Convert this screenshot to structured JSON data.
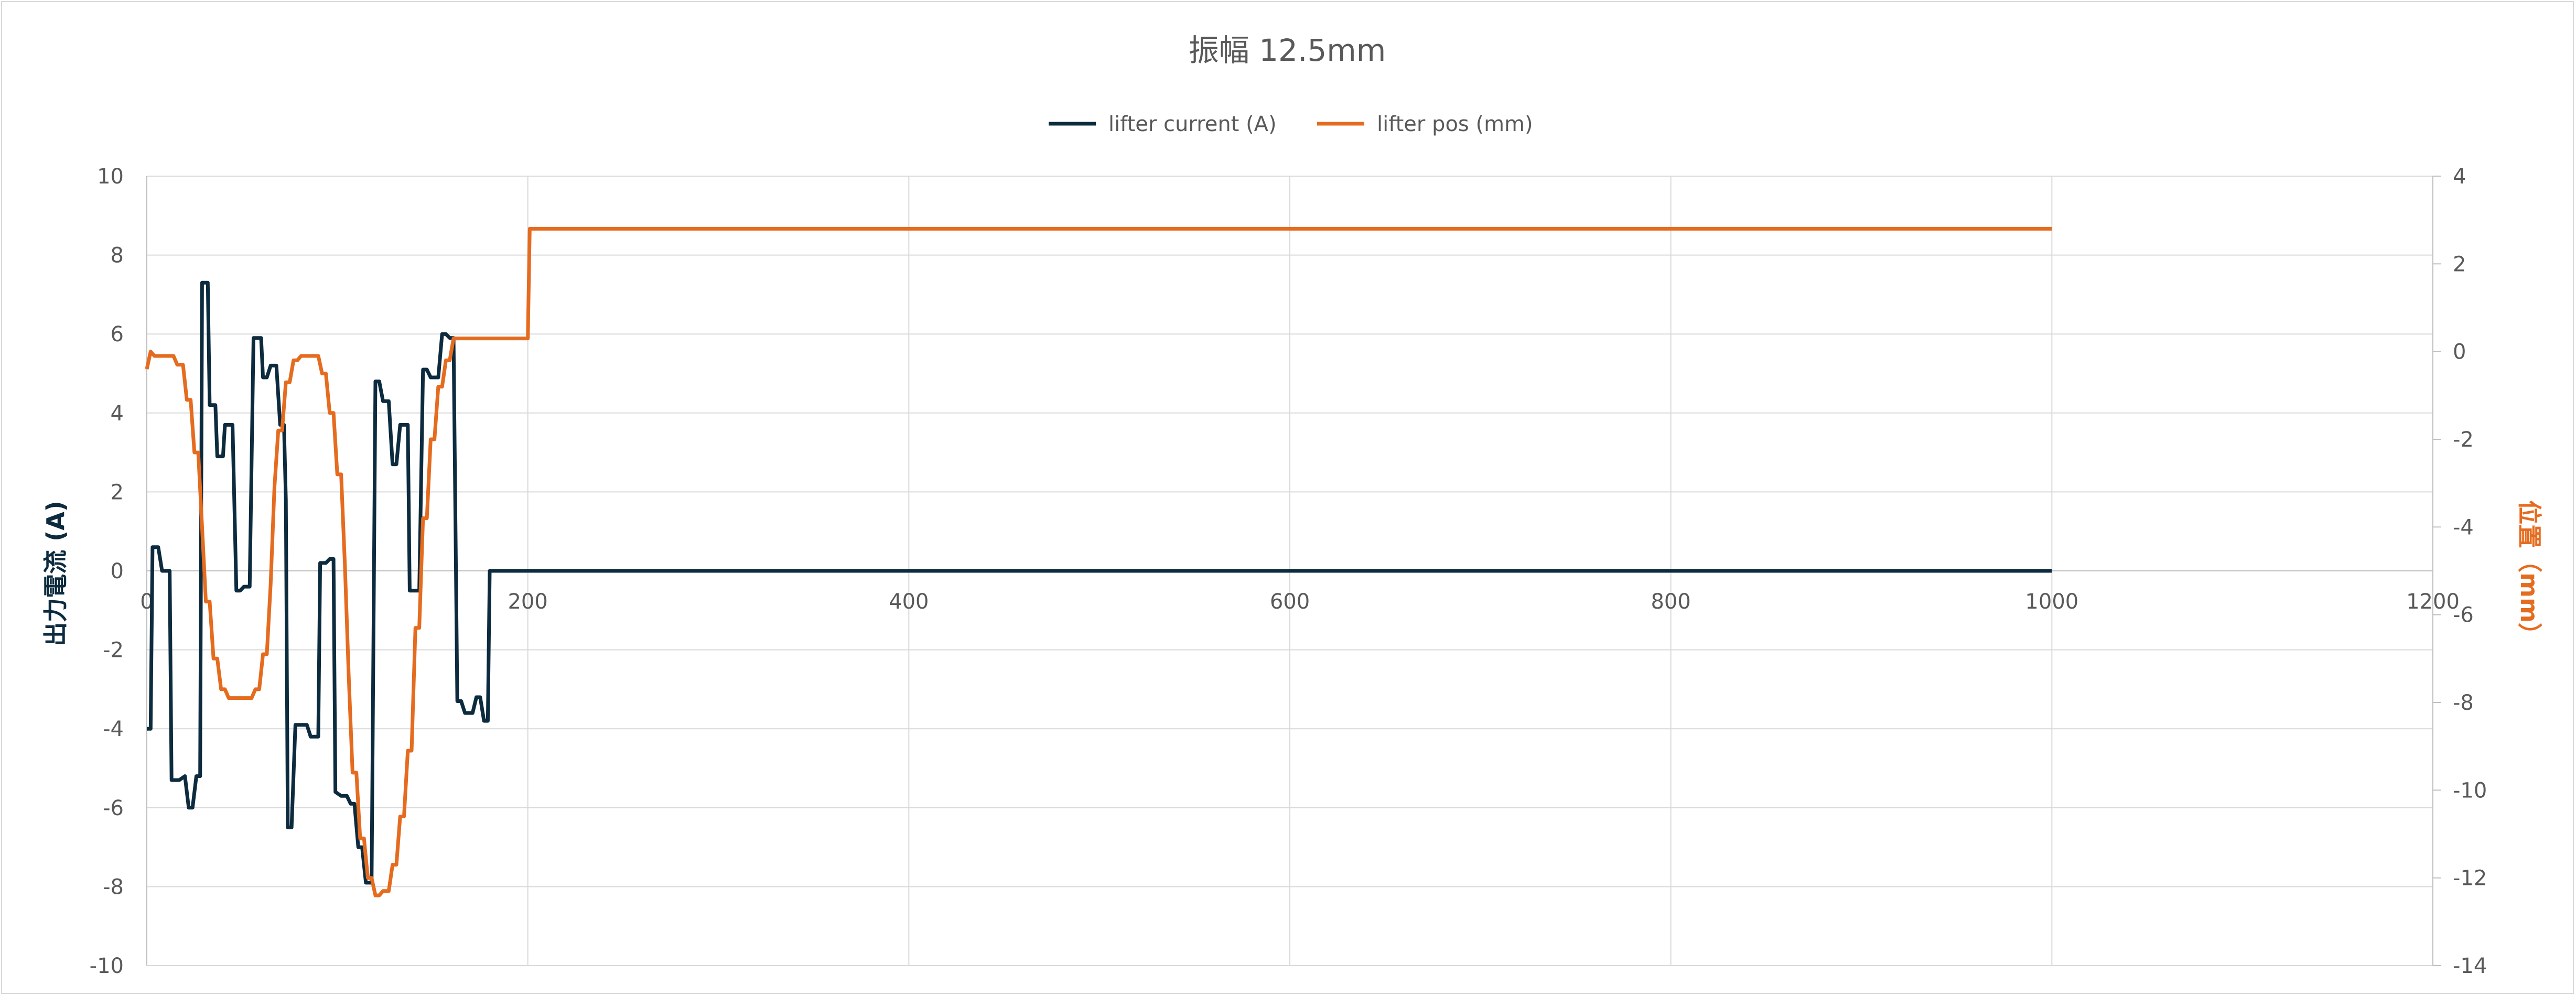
{
  "chart_data": {
    "type": "line",
    "title": "振幅 12.5mm",
    "legend": {
      "placement": "top-center",
      "entries": [
        "lifter current (A)",
        "lifter pos (mm)"
      ]
    },
    "grid": true,
    "x_axis": {
      "range": [
        0,
        1200
      ],
      "ticks": [
        0,
        200,
        400,
        600,
        800,
        1000,
        1200
      ],
      "tick_labels": [
        "0",
        "200",
        "400",
        "600",
        "800",
        "1000",
        "1200"
      ]
    },
    "y_left": {
      "label": "出力電流 (A)",
      "range": [
        -10,
        10
      ],
      "ticks": [
        -10,
        -8,
        -6,
        -4,
        -2,
        0,
        2,
        4,
        6,
        8,
        10
      ],
      "tick_labels": [
        "-10",
        "-8",
        "-6",
        "-4",
        "-2",
        "0",
        "2",
        "4",
        "6",
        "8",
        "10"
      ]
    },
    "y_right": {
      "label": "位置（mm）",
      "range": [
        -14,
        4
      ],
      "ticks": [
        -14,
        -12,
        -10,
        -8,
        -6,
        -4,
        -2,
        0,
        2,
        4
      ],
      "tick_labels": [
        "-14",
        "-12",
        "-10",
        "-8",
        "-6",
        "-4",
        "-2",
        "0",
        "2",
        "4"
      ]
    },
    "series": [
      {
        "name": "lifter current (A)",
        "axis": "left",
        "color": "#0d2b3e",
        "points": [
          [
            0,
            -4.0
          ],
          [
            2,
            -4.0
          ],
          [
            3,
            0.6
          ],
          [
            6,
            0.6
          ],
          [
            8,
            0.0
          ],
          [
            12,
            0.0
          ],
          [
            13,
            -5.3
          ],
          [
            17,
            -5.3
          ],
          [
            20,
            -5.2
          ],
          [
            22,
            -6.0
          ],
          [
            24,
            -6.0
          ],
          [
            26,
            -5.2
          ],
          [
            28,
            -5.2
          ],
          [
            29,
            7.3
          ],
          [
            32,
            7.3
          ],
          [
            33,
            4.2
          ],
          [
            36,
            4.2
          ],
          [
            37,
            2.9
          ],
          [
            40,
            2.9
          ],
          [
            41,
            3.7
          ],
          [
            45,
            3.7
          ],
          [
            47,
            -0.5
          ],
          [
            49,
            -0.5
          ],
          [
            51,
            -0.4
          ],
          [
            54,
            -0.4
          ],
          [
            56,
            5.9
          ],
          [
            60,
            5.9
          ],
          [
            61,
            4.9
          ],
          [
            63,
            4.9
          ],
          [
            65,
            5.2
          ],
          [
            68,
            5.2
          ],
          [
            70,
            3.7
          ],
          [
            72,
            3.7
          ],
          [
            73,
            1.8
          ],
          [
            74,
            -6.5
          ],
          [
            76,
            -6.5
          ],
          [
            78,
            -3.9
          ],
          [
            84,
            -3.9
          ],
          [
            86,
            -4.2
          ],
          [
            90,
            -4.2
          ],
          [
            91,
            0.2
          ],
          [
            94,
            0.2
          ],
          [
            96,
            0.3
          ],
          [
            98,
            0.3
          ],
          [
            99,
            -5.6
          ],
          [
            102,
            -5.7
          ],
          [
            105,
            -5.7
          ],
          [
            107,
            -5.9
          ],
          [
            109,
            -5.9
          ],
          [
            111,
            -7.0
          ],
          [
            113,
            -7.0
          ],
          [
            115,
            -7.9
          ],
          [
            118,
            -7.9
          ],
          [
            120,
            4.8
          ],
          [
            122,
            4.8
          ],
          [
            124,
            4.3
          ],
          [
            127,
            4.3
          ],
          [
            129,
            2.7
          ],
          [
            131,
            2.7
          ],
          [
            133,
            3.7
          ],
          [
            137,
            3.7
          ],
          [
            138,
            -0.5
          ],
          [
            143,
            -0.5
          ],
          [
            145,
            5.1
          ],
          [
            147,
            5.1
          ],
          [
            149,
            4.9
          ],
          [
            153,
            4.9
          ],
          [
            155,
            6.0
          ],
          [
            157,
            6.0
          ],
          [
            159,
            5.9
          ],
          [
            161,
            5.9
          ],
          [
            163,
            -3.3
          ],
          [
            165,
            -3.3
          ],
          [
            167,
            -3.6
          ],
          [
            171,
            -3.6
          ],
          [
            173,
            -3.2
          ],
          [
            175,
            -3.2
          ],
          [
            177,
            -3.8
          ],
          [
            179,
            -3.8
          ],
          [
            180,
            0.0
          ],
          [
            1000,
            0.0
          ]
        ]
      },
      {
        "name": "lifter pos (mm)",
        "axis": "right",
        "color": "#e56b1f",
        "points": [
          [
            0,
            -0.4
          ],
          [
            2,
            0.0
          ],
          [
            4,
            -0.1
          ],
          [
            14,
            -0.1
          ],
          [
            16,
            -0.3
          ],
          [
            19,
            -0.3
          ],
          [
            21,
            -1.1
          ],
          [
            23,
            -1.1
          ],
          [
            25,
            -2.3
          ],
          [
            27,
            -2.3
          ],
          [
            29,
            -4.0
          ],
          [
            31,
            -5.7
          ],
          [
            33,
            -5.7
          ],
          [
            35,
            -7.0
          ],
          [
            37,
            -7.0
          ],
          [
            39,
            -7.7
          ],
          [
            41,
            -7.7
          ],
          [
            43,
            -7.9
          ],
          [
            47,
            -7.9
          ],
          [
            49,
            -7.9
          ],
          [
            51,
            -7.9
          ],
          [
            53,
            -7.9
          ],
          [
            55,
            -7.9
          ],
          [
            57,
            -7.7
          ],
          [
            59,
            -7.7
          ],
          [
            61,
            -6.9
          ],
          [
            63,
            -6.9
          ],
          [
            65,
            -5.3
          ],
          [
            67,
            -3.1
          ],
          [
            69,
            -1.8
          ],
          [
            71,
            -1.8
          ],
          [
            73,
            -0.7
          ],
          [
            75,
            -0.7
          ],
          [
            77,
            -0.2
          ],
          [
            79,
            -0.2
          ],
          [
            81,
            -0.1
          ],
          [
            85,
            -0.1
          ],
          [
            90,
            -0.1
          ],
          [
            92,
            -0.5
          ],
          [
            94,
            -0.5
          ],
          [
            96,
            -1.4
          ],
          [
            98,
            -1.4
          ],
          [
            100,
            -2.8
          ],
          [
            102,
            -2.8
          ],
          [
            104,
            -4.9
          ],
          [
            106,
            -7.4
          ],
          [
            108,
            -9.6
          ],
          [
            110,
            -9.6
          ],
          [
            112,
            -11.1
          ],
          [
            114,
            -11.1
          ],
          [
            116,
            -12.0
          ],
          [
            118,
            -12.0
          ],
          [
            120,
            -12.4
          ],
          [
            122,
            -12.4
          ],
          [
            124,
            -12.3
          ],
          [
            127,
            -12.3
          ],
          [
            129,
            -11.7
          ],
          [
            131,
            -11.7
          ],
          [
            133,
            -10.6
          ],
          [
            135,
            -10.6
          ],
          [
            137,
            -9.1
          ],
          [
            139,
            -9.1
          ],
          [
            141,
            -6.3
          ],
          [
            143,
            -6.3
          ],
          [
            145,
            -3.8
          ],
          [
            147,
            -3.8
          ],
          [
            149,
            -2.0
          ],
          [
            151,
            -2.0
          ],
          [
            153,
            -0.8
          ],
          [
            155,
            -0.8
          ],
          [
            157,
            -0.2
          ],
          [
            159,
            -0.2
          ],
          [
            161,
            0.3
          ],
          [
            200,
            0.3
          ],
          [
            201,
            2.8
          ],
          [
            1000,
            2.8
          ]
        ]
      }
    ]
  }
}
